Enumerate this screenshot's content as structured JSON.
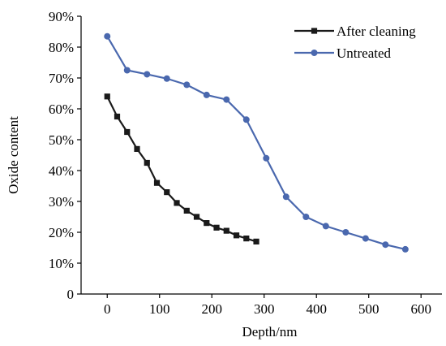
{
  "chart_data": {
    "type": "line",
    "xlabel": "Depth/nm",
    "ylabel": "Oxide content",
    "xlim": [
      -50,
      640
    ],
    "ylim": [
      0,
      90
    ],
    "x_ticks": [
      0,
      100,
      200,
      300,
      400,
      500,
      600
    ],
    "y_ticks": [
      0,
      10,
      20,
      30,
      40,
      50,
      60,
      70,
      80,
      90
    ],
    "y_tick_labels": [
      "0",
      "10%",
      "20%",
      "30%",
      "40%",
      "50%",
      "60%",
      "70%",
      "80%",
      "90%"
    ],
    "grid": false,
    "legend_position": "top-right",
    "series": [
      {
        "name": "After cleaning",
        "color": "#1a1a1a",
        "marker": "square",
        "x": [
          0,
          19,
          38,
          57,
          76,
          95,
          114,
          133,
          152,
          171,
          190,
          209,
          228,
          247,
          266,
          285
        ],
        "y": [
          64,
          57.5,
          52.5,
          47,
          42.5,
          36,
          33,
          29.5,
          27,
          25,
          23,
          21.5,
          20.5,
          19,
          18,
          17
        ]
      },
      {
        "name": "Untreated",
        "color": "#4a68ae",
        "marker": "circle",
        "x": [
          0,
          38,
          76,
          114,
          152,
          190,
          228,
          266,
          304,
          342,
          380,
          418,
          456,
          494,
          532,
          570
        ],
        "y": [
          83.5,
          72.5,
          71.2,
          69.8,
          67.8,
          64.5,
          63,
          56.5,
          44,
          31.5,
          25,
          22,
          20,
          18,
          16,
          14.5
        ]
      }
    ]
  }
}
